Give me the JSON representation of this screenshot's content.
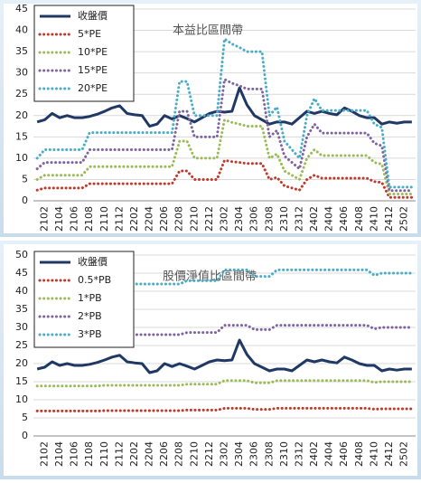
{
  "chart_data": [
    {
      "type": "line",
      "title": "本益比區間帶",
      "categories": [
        null,
        "2102",
        null,
        "2104",
        null,
        "2106",
        null,
        "2108",
        null,
        "2110",
        null,
        "2112",
        null,
        "2202",
        null,
        "2204",
        null,
        "2206",
        null,
        "2208",
        null,
        "2210",
        null,
        "2212",
        null,
        "2302",
        null,
        "2304",
        null,
        "2306",
        null,
        "2308",
        null,
        "2310",
        null,
        "2312",
        null,
        "2402",
        null,
        "2404",
        null,
        "2406",
        null,
        "2408",
        null,
        "2410",
        null,
        "2412",
        null,
        "2502",
        null
      ],
      "ylim": [
        0,
        45
      ],
      "yticks": [
        0,
        5,
        10,
        15,
        20,
        25,
        30,
        35,
        40,
        45
      ],
      "legend": "upper-left",
      "series": [
        {
          "name": "收盤價",
          "color": "#1f3864",
          "style": "solid",
          "values": [
            18.5,
            19,
            20.5,
            19.5,
            20,
            19.5,
            19.5,
            19.8,
            20.3,
            21,
            21.8,
            22.3,
            20.5,
            20.2,
            20,
            17.5,
            18,
            20,
            19.2,
            20,
            19.3,
            18.5,
            19.5,
            20.5,
            21,
            20.8,
            21,
            26.5,
            22.5,
            20,
            19,
            18,
            18.5,
            18.5,
            18,
            19.5,
            21,
            20.5,
            21,
            20.5,
            20.2,
            21.8,
            21,
            20,
            19.5,
            19.5,
            18,
            18.5,
            18.2,
            18.5,
            18.5
          ]
        },
        {
          "name": "5*PE",
          "color": "#c0392b",
          "style": "dotted",
          "values": [
            2.5,
            3,
            3,
            3,
            3,
            3,
            3,
            4,
            4,
            4,
            4,
            4,
            4,
            4,
            4,
            4,
            4,
            4,
            4,
            7,
            7,
            5,
            5,
            5,
            5,
            9.5,
            9.2,
            9,
            8.75,
            8.75,
            8.75,
            5,
            5.5,
            3.5,
            3,
            2.5,
            5,
            6,
            5.3,
            5.3,
            5.3,
            5.3,
            5.3,
            5.3,
            5.3,
            4.5,
            4.3,
            0.8,
            0.8,
            0.8,
            0.8
          ]
        },
        {
          "name": "10*PE",
          "color": "#9bbb59",
          "style": "dotted",
          "values": [
            5,
            6,
            6,
            6,
            6,
            6,
            6,
            8,
            8,
            8,
            8,
            8,
            8,
            8,
            8,
            8,
            8,
            8,
            8,
            14,
            14,
            10,
            10,
            10,
            10,
            19,
            18.4,
            18,
            17.5,
            17.5,
            17.5,
            10,
            11,
            7,
            6,
            5,
            10,
            12,
            10.6,
            10.6,
            10.6,
            10.6,
            10.6,
            10.6,
            10.6,
            9,
            8.6,
            1.6,
            1.6,
            1.6,
            1.6
          ]
        },
        {
          "name": "15*PE",
          "color": "#8064a2",
          "style": "dotted",
          "values": [
            7.5,
            9,
            9,
            9,
            9,
            9,
            9,
            12,
            12,
            12,
            12,
            12,
            12,
            12,
            12,
            12,
            12,
            12,
            12,
            21,
            21,
            15,
            15,
            15,
            15,
            28.5,
            27.6,
            27,
            26.25,
            26.25,
            26.25,
            15,
            16.5,
            10.5,
            9,
            7.5,
            15,
            18,
            15.9,
            15.9,
            15.9,
            15.9,
            15.9,
            15.9,
            15.9,
            13.5,
            12.9,
            2.4,
            2.4,
            2.4,
            2.4
          ]
        },
        {
          "name": "20*PE",
          "color": "#4bacc6",
          "style": "dotted",
          "values": [
            10,
            12,
            12,
            12,
            12,
            12,
            12,
            16,
            16,
            16,
            16,
            16,
            16,
            16,
            16,
            16,
            16,
            16,
            16,
            28,
            28,
            20,
            20,
            20,
            20,
            38,
            36.8,
            36,
            35,
            35,
            35,
            20,
            22,
            14,
            12,
            10,
            20,
            24,
            21.2,
            21.2,
            21.2,
            21.2,
            21.2,
            21.2,
            21.2,
            18,
            17.2,
            3.2,
            3.2,
            3.2,
            3.2
          ]
        }
      ]
    },
    {
      "type": "line",
      "title": "股價淨值比區間帶",
      "categories": [
        null,
        "2102",
        null,
        "2104",
        null,
        "2106",
        null,
        "2108",
        null,
        "2110",
        null,
        "2112",
        null,
        "2202",
        null,
        "2204",
        null,
        "2206",
        null,
        "2208",
        null,
        "2210",
        null,
        "2212",
        null,
        "2302",
        null,
        "2304",
        null,
        "2306",
        null,
        "2308",
        null,
        "2310",
        null,
        "2312",
        null,
        "2402",
        null,
        "2404",
        null,
        "2406",
        null,
        "2408",
        null,
        "2410",
        null,
        "2412",
        null,
        "2502",
        null
      ],
      "ylim": [
        0,
        50
      ],
      "yticks": [
        0,
        5,
        10,
        15,
        20,
        25,
        30,
        35,
        40,
        45,
        50
      ],
      "legend": "upper-left",
      "series": [
        {
          "name": "收盤價",
          "color": "#1f3864",
          "style": "solid",
          "values": [
            18.5,
            19,
            20.5,
            19.5,
            20,
            19.5,
            19.5,
            19.8,
            20.3,
            21,
            21.8,
            22.3,
            20.5,
            20.2,
            20,
            17.5,
            18,
            20,
            19.2,
            20,
            19.3,
            18.5,
            19.5,
            20.5,
            21,
            20.8,
            21,
            26.5,
            22.5,
            20,
            19,
            18,
            18.5,
            18.5,
            18,
            19.5,
            21,
            20.5,
            21,
            20.5,
            20.2,
            21.8,
            21,
            20,
            19.5,
            19.5,
            18,
            18.5,
            18.2,
            18.5,
            18.5
          ]
        },
        {
          "name": "0.5*PB",
          "color": "#c0392b",
          "style": "dotted",
          "values": [
            6.9,
            6.9,
            6.9,
            6.9,
            6.9,
            6.9,
            6.9,
            6.9,
            6.9,
            7,
            7,
            7,
            7,
            7,
            7,
            7,
            7,
            7,
            7,
            7,
            7.15,
            7.15,
            7.15,
            7.15,
            7.15,
            7.65,
            7.65,
            7.65,
            7.65,
            7.35,
            7.35,
            7.35,
            7.65,
            7.65,
            7.65,
            7.65,
            7.65,
            7.65,
            7.65,
            7.65,
            7.65,
            7.65,
            7.65,
            7.65,
            7.65,
            7.4,
            7.5,
            7.5,
            7.5,
            7.5,
            7.5
          ]
        },
        {
          "name": "1*PB",
          "color": "#9bbb59",
          "style": "dotted",
          "values": [
            13.8,
            13.8,
            13.8,
            13.8,
            13.8,
            13.8,
            13.8,
            13.8,
            13.8,
            14,
            14,
            14,
            14,
            14,
            14,
            14,
            14,
            14,
            14,
            14,
            14.3,
            14.3,
            14.3,
            14.3,
            14.3,
            15.3,
            15.3,
            15.3,
            15.3,
            14.7,
            14.7,
            14.7,
            15.3,
            15.3,
            15.3,
            15.3,
            15.3,
            15.3,
            15.3,
            15.3,
            15.3,
            15.3,
            15.3,
            15.3,
            15.3,
            14.8,
            15,
            15,
            15,
            15,
            15
          ]
        },
        {
          "name": "2*PB",
          "color": "#8064a2",
          "style": "dotted",
          "values": [
            27.6,
            27.6,
            27.6,
            27.6,
            27.6,
            27.6,
            27.6,
            27.6,
            27.6,
            28,
            28,
            28,
            28,
            28,
            28,
            28,
            28,
            28,
            28,
            28,
            28.6,
            28.6,
            28.6,
            28.6,
            28.6,
            30.6,
            30.6,
            30.6,
            30.6,
            29.4,
            29.4,
            29.4,
            30.6,
            30.6,
            30.6,
            30.6,
            30.6,
            30.6,
            30.6,
            30.6,
            30.6,
            30.6,
            30.6,
            30.6,
            30.6,
            29.6,
            30,
            30,
            30,
            30,
            30
          ]
        },
        {
          "name": "3*PB",
          "color": "#4bacc6",
          "style": "dotted",
          "values": [
            41.4,
            41.4,
            41.4,
            41.4,
            41.4,
            41.4,
            41.4,
            41.4,
            41.4,
            42,
            42,
            42,
            42,
            42,
            42,
            42,
            42,
            42,
            42,
            42,
            42.9,
            42.9,
            42.9,
            42.9,
            42.9,
            45.9,
            45.9,
            45.9,
            45.9,
            44.1,
            44.1,
            44.1,
            45.9,
            45.9,
            45.9,
            45.9,
            45.9,
            45.9,
            45.9,
            45.9,
            45.9,
            45.9,
            45.9,
            45.9,
            45.9,
            44.4,
            45,
            45,
            45,
            45,
            45
          ]
        }
      ]
    }
  ]
}
